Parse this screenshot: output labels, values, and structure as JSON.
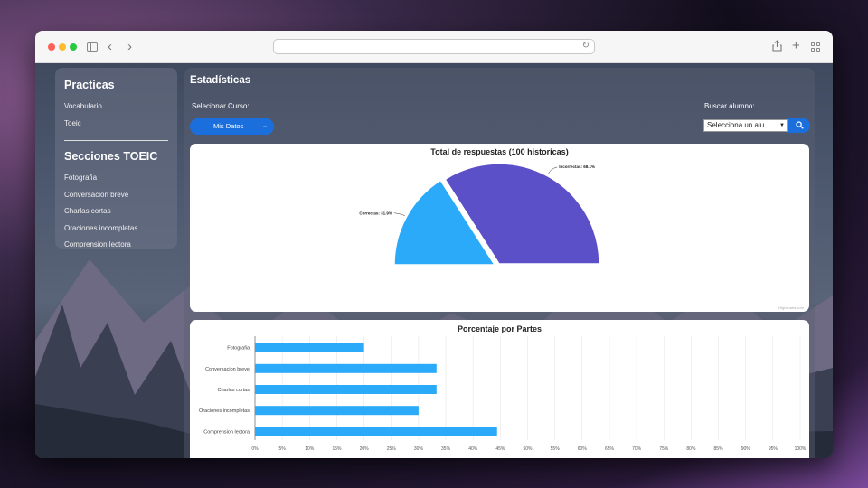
{
  "browser": {
    "url": ""
  },
  "sidebar": {
    "practicas_title": "Practicas",
    "practicas": [
      "Vocabulario",
      "Toeic"
    ],
    "secciones_title": "Secciones TOEIC",
    "secciones": [
      "Fotografia",
      "Conversacion breve",
      "Charlas cortas",
      "Oraciones incompletas",
      "Comprension lectora"
    ]
  },
  "main": {
    "title": "Estadísticas",
    "course_label": "Selecionar Curso:",
    "course_value": "Mis Datos",
    "student_label": "Buscar alumno:",
    "student_value": "Selecciona un alu...",
    "credit": "Highcharts.com"
  },
  "colors": {
    "accent": "#1a6fdc",
    "correct": "#2aaaf8",
    "incorrect": "#5b50c7",
    "bar": "#2aaaf8"
  },
  "chart_data": [
    {
      "type": "pie",
      "title": "Total de respuestas (100 historicas)",
      "variant": "semicircle",
      "slices": [
        {
          "label": "Correctas: 31.9%",
          "value": 31.9
        },
        {
          "label": "Incorrectas: 68.1%",
          "value": 68.1
        }
      ]
    },
    {
      "type": "bar",
      "orientation": "horizontal",
      "title": "Porcentaje por Partes",
      "categories": [
        "Fotografia",
        "Conversacion breve",
        "Charlas cortas",
        "Oraciones incompletas",
        "Comprension lectora"
      ],
      "values": [
        20,
        33.3,
        33.3,
        30,
        44.4
      ],
      "xlim": [
        0,
        100
      ],
      "ticks": [
        "0%",
        "5%",
        "10%",
        "15%",
        "20%",
        "25%",
        "30%",
        "35%",
        "40%",
        "45%",
        "50%",
        "55%",
        "60%",
        "65%",
        "70%",
        "75%",
        "80%",
        "85%",
        "90%",
        "95%",
        "100%"
      ]
    }
  ]
}
